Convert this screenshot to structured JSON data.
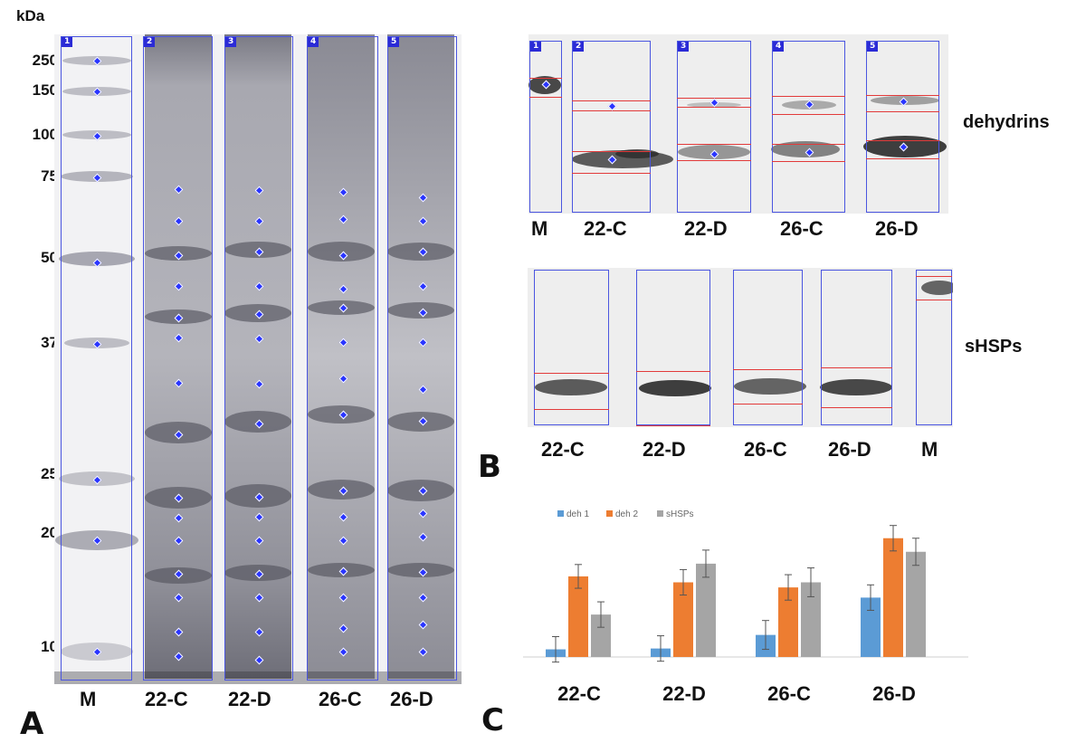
{
  "panel_a": {
    "unit_label": "kDa",
    "marker_sizes": [
      "250",
      "150",
      "100",
      "75",
      "50",
      "37",
      "25",
      "20",
      "10"
    ],
    "lane_numbers": [
      "1",
      "2",
      "3",
      "4",
      "5"
    ],
    "lane_labels": [
      "M",
      "22-C",
      "22-D",
      "26-C",
      "26-D"
    ],
    "panel_letter": "A"
  },
  "panel_b": {
    "dehydrins_title": "dehydrins",
    "shsps_title": "sHSPs",
    "dehydrin_lane_numbers": [
      "1",
      "2",
      "3",
      "4",
      "5"
    ],
    "dehydrin_lane_labels": [
      "M",
      "22-C",
      "22-D",
      "26-C",
      "26-D"
    ],
    "shsp_lane_labels": [
      "22-C",
      "22-D",
      "26-C",
      "26-D",
      "M"
    ],
    "panel_letter": "B"
  },
  "panel_c": {
    "panel_letter": "C",
    "colors": {
      "deh1": "#5b9bd5",
      "deh2": "#ed7d31",
      "shsps": "#a5a5a5"
    }
  },
  "chart_data": {
    "type": "bar",
    "categories": [
      "22-C",
      "22-D",
      "26-C",
      "26-D"
    ],
    "series": [
      {
        "name": "deh 1",
        "values": [
          0.09,
          0.1,
          0.26,
          0.7
        ]
      },
      {
        "name": "deh 2",
        "values": [
          0.95,
          0.88,
          0.82,
          1.4
        ]
      },
      {
        "name": "sHSPs",
        "values": [
          0.5,
          1.1,
          0.88,
          1.24
        ]
      }
    ],
    "errors": [
      [
        0.15,
        0.15,
        0.17,
        0.15
      ],
      [
        0.14,
        0.15,
        0.15,
        0.15
      ],
      [
        0.15,
        0.16,
        0.17,
        0.16
      ]
    ],
    "ylim": [
      0,
      1.6
    ],
    "legend": "top-left",
    "grid": false
  }
}
